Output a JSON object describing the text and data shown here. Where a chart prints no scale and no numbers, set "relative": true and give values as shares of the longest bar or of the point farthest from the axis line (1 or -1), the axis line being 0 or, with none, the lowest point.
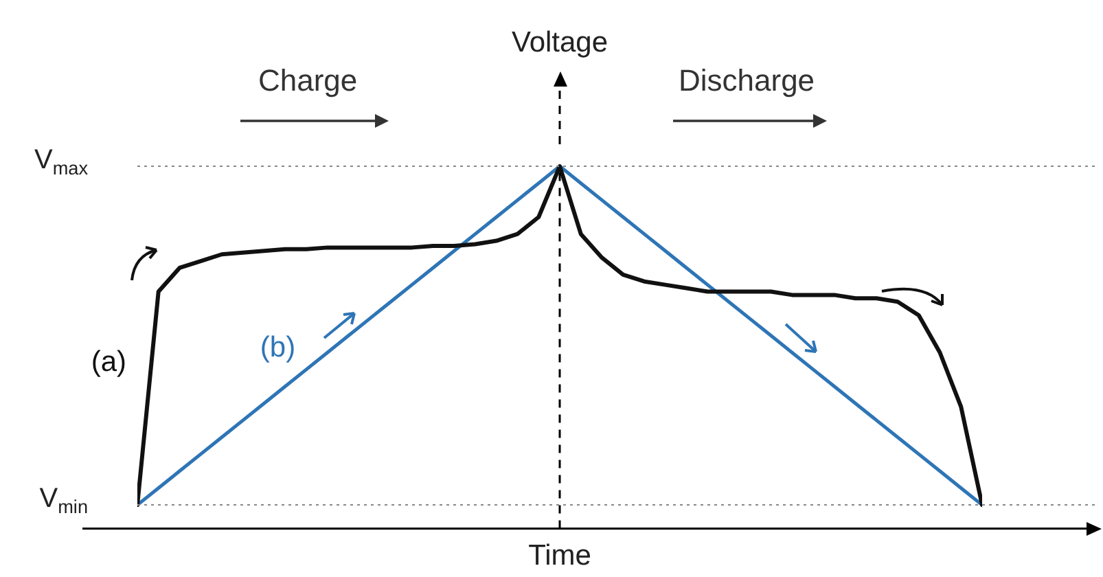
{
  "chart_data": {
    "type": "line",
    "xlabel": "Time",
    "ylabel": "Voltage",
    "annotations": [
      "Charge",
      "Discharge"
    ],
    "categories": [
      null,
      null,
      null,
      null,
      null,
      null,
      null,
      null,
      null,
      null,
      null,
      null,
      null,
      null,
      null,
      null,
      null,
      null,
      null,
      null,
      null,
      null,
      null,
      null,
      null,
      null,
      null,
      null,
      null,
      null,
      null,
      null,
      null,
      null,
      null,
      null,
      null,
      null,
      null,
      null,
      null
    ],
    "series": [
      {
        "name": "(a)",
        "color": "#111111",
        "values": [
          0,
          0.63,
          0.7,
          0.72,
          0.74,
          0.745,
          0.75,
          0.755,
          0.755,
          0.76,
          0.76,
          0.76,
          0.76,
          0.76,
          0.765,
          0.765,
          0.77,
          0.78,
          0.8,
          0.85,
          1,
          0.8,
          0.73,
          0.68,
          0.66,
          0.65,
          0.64,
          0.63,
          0.63,
          0.63,
          0.63,
          0.62,
          0.62,
          0.62,
          0.61,
          0.61,
          0.6,
          0.56,
          0.45,
          0.29,
          0
        ]
      },
      {
        "name": "(b)",
        "color": "#2e75b6",
        "values": [
          0,
          0.05,
          0.1,
          0.15,
          0.2,
          0.25,
          0.3,
          0.35,
          0.4,
          0.45,
          0.5,
          0.55,
          0.6,
          0.65,
          0.7,
          0.75,
          0.8,
          0.85,
          0.9,
          0.95,
          1,
          0.95,
          0.9,
          0.85,
          0.8,
          0.75,
          0.7,
          0.65,
          0.6,
          0.55,
          0.5,
          0.45,
          0.4,
          0.35,
          0.3,
          0.25,
          0.2,
          0.15,
          0.1,
          0.05,
          0
        ]
      }
    ],
    "relative": true,
    "ref_lines": [
      {
        "axis": "y",
        "value": 0,
        "label": "V$_{min}$",
        "color": "#888888",
        "line_style": "dotted"
      },
      {
        "axis": "y",
        "value": 1,
        "label": "V$_{max}$",
        "color": "#888888",
        "line_style": "dotted"
      }
    ],
    "marker": "none",
    "line_style": "solid",
    "legend": false
  }
}
